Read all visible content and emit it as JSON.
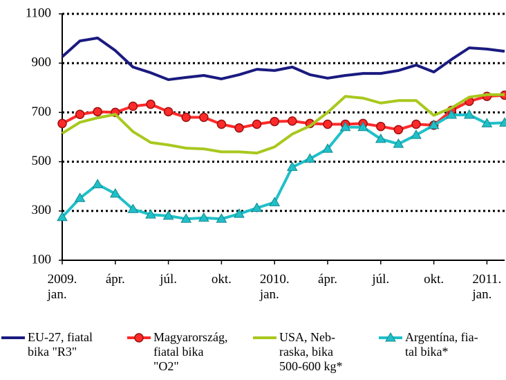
{
  "chart_data": {
    "type": "line",
    "categories": [
      "2009.\njan.",
      null,
      null,
      "ápr.",
      null,
      null,
      "júl.",
      null,
      null,
      "okt.",
      null,
      null,
      "2010.\njan.",
      null,
      null,
      "ápr.",
      null,
      null,
      "júl.",
      null,
      null,
      "okt.",
      null,
      null,
      "2011.\njan.",
      null
    ],
    "series": [
      {
        "name": "EU-27, fiatal\nbika \"R3\"",
        "color": "#1a1a80",
        "values": [
          926,
          990,
          1002,
          951,
          884,
          861,
          833,
          842,
          850,
          836,
          853,
          875,
          870,
          884,
          853,
          839,
          850,
          858,
          858,
          870,
          892,
          864,
          915,
          962,
          957,
          948
        ]
      },
      {
        "name": "Magyarország,\nfiatal bika\n\"O2\"",
        "color": "#ff2a2a",
        "marker": "circle",
        "values": [
          655,
          692,
          703,
          700,
          725,
          733,
          703,
          680,
          680,
          652,
          637,
          652,
          663,
          665,
          655,
          652,
          652,
          655,
          643,
          630,
          652,
          648,
          708,
          745,
          765,
          770
        ]
      },
      {
        "name": "USA, Neb-\nraska, bika\n500-600 kg*",
        "color": "#a8c81e",
        "values": [
          615,
          660,
          678,
          692,
          622,
          578,
          568,
          555,
          552,
          540,
          540,
          535,
          560,
          612,
          645,
          700,
          765,
          758,
          738,
          748,
          748,
          688,
          718,
          762,
          772,
          772
        ]
      },
      {
        "name": "Argentína, fia-\ntal bika*",
        "color": "#20c0c8",
        "marker": "triangle",
        "values": [
          275,
          352,
          408,
          370,
          307,
          285,
          280,
          268,
          272,
          268,
          288,
          312,
          335,
          478,
          512,
          552,
          640,
          640,
          592,
          572,
          608,
          648,
          690,
          690,
          655,
          658
        ]
      }
    ],
    "ylim": [
      100,
      1100
    ],
    "yticks": [
      100,
      300,
      500,
      700,
      900,
      1100
    ],
    "grid": true
  }
}
